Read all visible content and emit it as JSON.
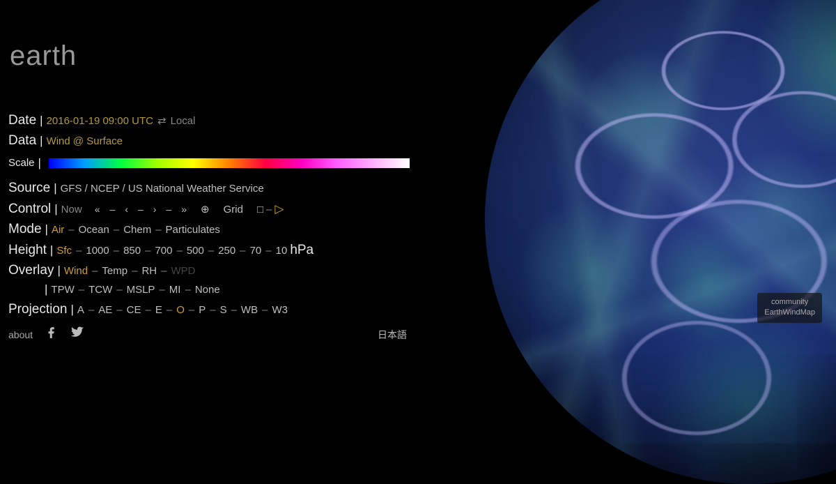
{
  "app": {
    "title": "earth"
  },
  "panel": {
    "date": {
      "label": "Date",
      "value": "2016-01-19 09:00 UTC",
      "toggle_symbol": "⇄",
      "toggle_label": "Local"
    },
    "data": {
      "label": "Data",
      "value": "Wind @ Surface"
    },
    "scale": {
      "label": "Scale",
      "gradient_stops": [
        "#0000ff",
        "#00a0ff",
        "#00ff40",
        "#a0ff00",
        "#ffff00",
        "#ff8000",
        "#ff0040",
        "#ff00c0",
        "#ff60ff",
        "#ffb0ff",
        "#ffffff"
      ]
    },
    "source": {
      "label": "Source",
      "value": "GFS / NCEP / US National Weather Service"
    },
    "control": {
      "label": "Control",
      "now": "Now",
      "grid": "Grid",
      "buttons": [
        "«",
        "–",
        "‹",
        "–",
        "›",
        "–",
        "»"
      ],
      "target": "⊕",
      "stop": "□",
      "play": "▷"
    },
    "mode": {
      "label": "Mode",
      "selected": "Air",
      "options": [
        "Air",
        "Ocean",
        "Chem",
        "Particulates"
      ]
    },
    "height": {
      "label": "Height",
      "selected": "Sfc",
      "options": [
        "Sfc",
        "1000",
        "850",
        "700",
        "500",
        "250",
        "70",
        "10"
      ],
      "unit": "hPa"
    },
    "overlay": {
      "label": "Overlay",
      "selected": "Wind",
      "row1": [
        "Wind",
        "Temp",
        "RH",
        "WPD"
      ],
      "row2": [
        "TPW",
        "TCW",
        "MSLP",
        "MI",
        "None"
      ],
      "disabled": [
        "WPD"
      ]
    },
    "projection": {
      "label": "Projection",
      "selected": "O",
      "options": [
        "A",
        "AE",
        "CE",
        "E",
        "O",
        "P",
        "S",
        "WB",
        "W3"
      ]
    },
    "footer": {
      "about": "about",
      "lang": "日本語"
    }
  },
  "badge": {
    "line1": "community",
    "line2": "EarthWindMap"
  },
  "colors": {
    "background": "#000000",
    "text": "#d8d8d8",
    "dim": "#888888",
    "accent": "#d0a030",
    "globe_base": "#1a2e70",
    "globe_streams": "#60e0a0",
    "coastline": "#c8beff"
  }
}
